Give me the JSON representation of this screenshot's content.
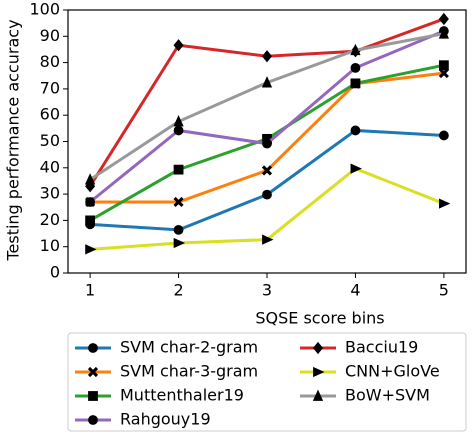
{
  "chart_data": {
    "type": "line",
    "xlabel": "SQSE score bins",
    "ylabel": "Testing performance accuracy",
    "x": [
      1,
      2,
      3,
      4,
      5
    ],
    "xlim": [
      0.75,
      5.25
    ],
    "xticks": [
      1,
      2,
      3,
      4,
      5
    ],
    "ylim": [
      0,
      100
    ],
    "yticks": [
      0,
      10,
      20,
      30,
      40,
      50,
      60,
      70,
      80,
      90,
      100
    ],
    "series": [
      {
        "name": "SVM char-2-gram",
        "color": "#1f77b4",
        "marker": "circle",
        "values": [
          18.5,
          16.4,
          29.8,
          54.2,
          52.3
        ]
      },
      {
        "name": "SVM char-3-gram",
        "color": "#ff7f0e",
        "marker": "cross",
        "values": [
          27,
          27,
          39,
          72,
          76
        ]
      },
      {
        "name": "Muttenthaler19",
        "color": "#2ca02c",
        "marker": "square",
        "values": [
          20,
          39.3,
          51,
          72.1,
          79
        ]
      },
      {
        "name": "Rahgouy19",
        "color": "#9467bd",
        "marker": "circle",
        "values": [
          27,
          54.2,
          49.2,
          78,
          92
        ]
      },
      {
        "name": "Bacciu19",
        "color": "#d62728",
        "marker": "diamond",
        "values": [
          33,
          86.6,
          82.4,
          84.3,
          96.6
        ]
      },
      {
        "name": "CNN+GloVe",
        "color": "#d9e021",
        "marker": "triangle-right",
        "values": [
          9,
          11.4,
          12.7,
          39.7,
          26.4
        ]
      },
      {
        "name": "BoW+SVM",
        "color": "#999999",
        "marker": "triangle-up",
        "values": [
          35.5,
          57.6,
          72.4,
          84.7,
          91
        ]
      }
    ]
  }
}
